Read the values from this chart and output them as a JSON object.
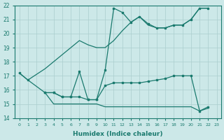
{
  "xlabel": "Humidex (Indice chaleur)",
  "xlim": [
    -0.5,
    23.5
  ],
  "ylim": [
    14,
    22
  ],
  "xticks": [
    0,
    1,
    2,
    3,
    4,
    5,
    6,
    7,
    8,
    9,
    10,
    11,
    12,
    13,
    14,
    15,
    16,
    17,
    18,
    19,
    20,
    21,
    22,
    23
  ],
  "yticks": [
    14,
    15,
    16,
    17,
    18,
    19,
    20,
    21,
    22
  ],
  "bg_color": "#cce8e8",
  "line_color": "#1a7a6e",
  "grid_color": "#aacece",
  "line1_x": [
    0,
    1,
    3,
    4,
    5,
    6,
    7,
    8,
    9,
    10,
    11,
    12,
    13,
    14,
    15,
    16,
    17,
    18,
    19,
    20,
    21,
    22
  ],
  "line1_y": [
    17.2,
    16.7,
    17.5,
    18.0,
    18.5,
    19.0,
    19.5,
    19.2,
    19.0,
    19.0,
    19.5,
    20.2,
    20.8,
    21.2,
    20.6,
    20.4,
    20.4,
    20.6,
    20.6,
    21.0,
    21.8,
    21.8
  ],
  "line2_x": [
    0,
    1,
    3,
    4,
    5,
    6,
    7,
    8,
    9,
    10,
    11,
    12,
    13,
    14,
    15,
    16,
    17,
    18,
    19,
    20,
    21,
    22
  ],
  "line2_y": [
    17.2,
    16.7,
    15.8,
    15.8,
    15.5,
    15.5,
    17.3,
    15.3,
    15.3,
    17.4,
    21.8,
    21.5,
    20.8,
    21.2,
    20.7,
    20.4,
    20.4,
    20.6,
    20.6,
    21.0,
    21.8,
    21.8
  ],
  "line3_x": [
    3,
    4,
    5,
    6,
    7,
    8,
    9,
    10,
    11,
    12,
    13,
    14,
    15,
    16,
    17,
    18,
    19,
    20,
    21,
    22
  ],
  "line3_y": [
    15.8,
    15.8,
    15.5,
    15.5,
    15.5,
    15.3,
    15.3,
    16.3,
    16.5,
    16.5,
    16.5,
    16.5,
    16.6,
    16.7,
    16.8,
    17.0,
    17.0,
    17.0,
    14.5,
    14.8
  ],
  "line4_x": [
    3,
    4,
    5,
    6,
    7,
    8,
    9,
    10,
    11,
    12,
    13,
    14,
    15,
    16,
    17,
    18,
    19,
    20,
    21,
    22
  ],
  "line4_y": [
    15.8,
    15.0,
    15.0,
    15.0,
    15.0,
    15.0,
    15.0,
    14.8,
    14.8,
    14.8,
    14.8,
    14.8,
    14.8,
    14.8,
    14.8,
    14.8,
    14.8,
    14.8,
    14.5,
    14.7
  ]
}
